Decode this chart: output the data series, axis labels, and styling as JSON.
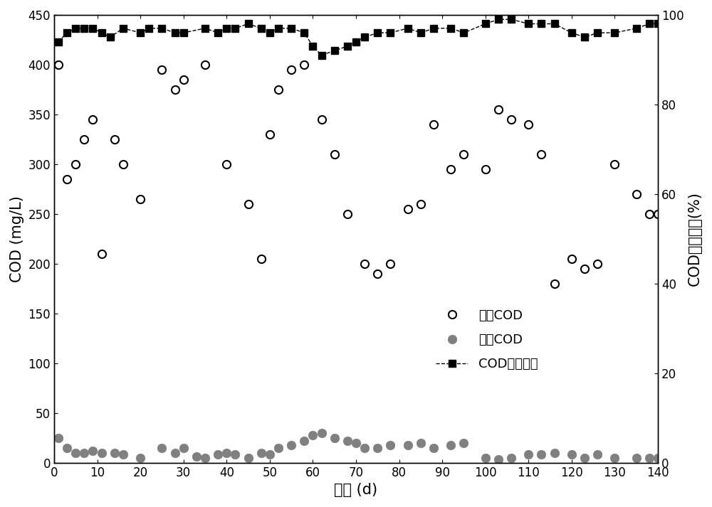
{
  "influent_cod_x": [
    1,
    3,
    5,
    7,
    9,
    11,
    14,
    16,
    20,
    25,
    28,
    30,
    35,
    40,
    45,
    48,
    50,
    52,
    55,
    58,
    62,
    65,
    68,
    72,
    75,
    78,
    82,
    85,
    88,
    92,
    95,
    100,
    103,
    106,
    110,
    113,
    116,
    120,
    123,
    126,
    130,
    135,
    138,
    140
  ],
  "influent_cod_y": [
    400,
    285,
    300,
    325,
    345,
    210,
    325,
    300,
    265,
    395,
    375,
    385,
    400,
    300,
    260,
    205,
    330,
    375,
    395,
    400,
    345,
    310,
    250,
    200,
    190,
    200,
    255,
    260,
    340,
    295,
    310,
    295,
    355,
    345,
    340,
    310,
    180,
    205,
    195,
    200,
    300,
    270,
    250,
    250
  ],
  "effluent_cod_x": [
    1,
    3,
    5,
    7,
    9,
    11,
    14,
    16,
    20,
    25,
    28,
    30,
    33,
    35,
    38,
    40,
    42,
    45,
    48,
    50,
    52,
    55,
    58,
    60,
    62,
    65,
    68,
    70,
    72,
    75,
    78,
    82,
    85,
    88,
    92,
    95,
    100,
    103,
    106,
    110,
    113,
    116,
    120,
    123,
    126,
    130,
    135,
    138,
    140
  ],
  "effluent_cod_y": [
    25,
    15,
    10,
    10,
    12,
    10,
    10,
    8,
    5,
    15,
    10,
    15,
    6,
    5,
    8,
    10,
    8,
    5,
    10,
    8,
    15,
    18,
    22,
    28,
    30,
    25,
    22,
    20,
    15,
    15,
    18,
    18,
    20,
    15,
    18,
    20,
    5,
    3,
    5,
    8,
    8,
    10,
    8,
    5,
    8,
    5,
    5,
    5,
    5
  ],
  "removal_x": [
    1,
    3,
    5,
    7,
    9,
    11,
    13,
    16,
    20,
    22,
    25,
    28,
    30,
    35,
    38,
    40,
    42,
    45,
    48,
    50,
    52,
    55,
    58,
    60,
    62,
    65,
    68,
    70,
    72,
    75,
    78,
    82,
    85,
    88,
    92,
    95,
    100,
    103,
    106,
    110,
    113,
    116,
    120,
    123,
    126,
    130,
    135,
    138,
    140
  ],
  "removal_y": [
    94,
    96,
    97,
    97,
    97,
    96,
    95,
    97,
    96,
    97,
    97,
    96,
    96,
    97,
    96,
    97,
    97,
    98,
    97,
    96,
    97,
    97,
    96,
    93,
    91,
    92,
    93,
    94,
    95,
    96,
    96,
    97,
    96,
    97,
    97,
    96,
    98,
    99,
    99,
    98,
    98,
    98,
    96,
    95,
    96,
    96,
    97,
    98,
    98
  ],
  "xlabel": "时间 (d)",
  "ylabel_left": "COD (mg/L)",
  "ylabel_right": "COD去除效率(%)",
  "legend_influent": "进水COD",
  "legend_effluent": "出水COD",
  "legend_removal": "COD去除效率",
  "xlim": [
    0,
    140
  ],
  "ylim_left": [
    0,
    450
  ],
  "ylim_right": [
    0,
    100
  ],
  "yticks_left": [
    0,
    50,
    100,
    150,
    200,
    250,
    300,
    350,
    400,
    450
  ],
  "yticks_right": [
    0,
    20,
    40,
    60,
    80,
    100
  ],
  "xticks": [
    0,
    10,
    20,
    30,
    40,
    50,
    60,
    70,
    80,
    90,
    100,
    110,
    120,
    130,
    140
  ],
  "influent_color": "#000000",
  "effluent_color": "#808080",
  "removal_color": "#000000",
  "background_color": "#ffffff",
  "marker_size_open": 8,
  "marker_size_filled": 9,
  "marker_size_square": 7,
  "linewidth": 1.0,
  "fontsize_axis_label": 15,
  "fontsize_tick": 12,
  "fontsize_legend": 13
}
